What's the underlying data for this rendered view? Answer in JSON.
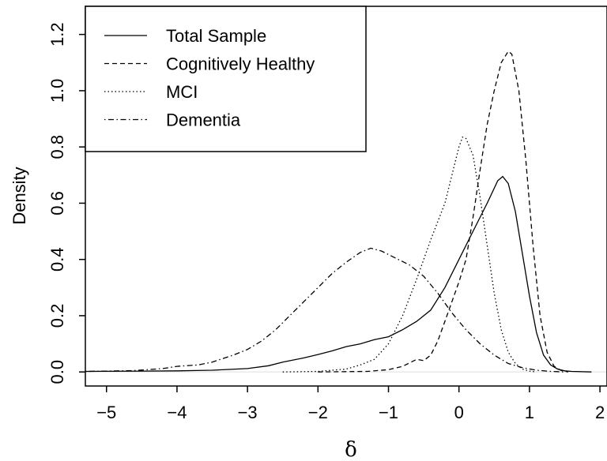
{
  "chart_data": {
    "type": "line",
    "title": "",
    "xlabel": "δ",
    "ylabel": "Density",
    "xlim": [
      -5.3,
      2.1
    ],
    "ylim": [
      -0.05,
      1.3
    ],
    "x_ticks": [
      -5,
      -4,
      -3,
      -2,
      -1,
      0,
      1,
      2
    ],
    "x_tick_labels": [
      "−5",
      "−4",
      "−3",
      "−2",
      "−1",
      "0",
      "1",
      "2"
    ],
    "y_ticks": [
      0.0,
      0.2,
      0.4,
      0.6,
      0.8,
      1.0,
      1.2
    ],
    "y_tick_labels": [
      "0.0",
      "0.2",
      "0.4",
      "0.6",
      "0.8",
      "1.0",
      "1.2"
    ],
    "grid": false,
    "legend_position": "top-left",
    "baseline": {
      "y": 0,
      "color": "#dddddd"
    },
    "series": [
      {
        "name": "Total Sample",
        "style": "solid",
        "color": "#000000",
        "points": [
          [
            -5.3,
            0.002
          ],
          [
            -4.5,
            0.003
          ],
          [
            -4.0,
            0.004
          ],
          [
            -3.5,
            0.006
          ],
          [
            -3.0,
            0.012
          ],
          [
            -2.7,
            0.022
          ],
          [
            -2.5,
            0.035
          ],
          [
            -2.2,
            0.05
          ],
          [
            -2.0,
            0.062
          ],
          [
            -1.8,
            0.075
          ],
          [
            -1.6,
            0.09
          ],
          [
            -1.4,
            0.1
          ],
          [
            -1.2,
            0.115
          ],
          [
            -1.0,
            0.125
          ],
          [
            -0.8,
            0.15
          ],
          [
            -0.6,
            0.18
          ],
          [
            -0.4,
            0.22
          ],
          [
            -0.2,
            0.3
          ],
          [
            0.0,
            0.4
          ],
          [
            0.2,
            0.5
          ],
          [
            0.4,
            0.6
          ],
          [
            0.55,
            0.68
          ],
          [
            0.62,
            0.695
          ],
          [
            0.7,
            0.67
          ],
          [
            0.8,
            0.57
          ],
          [
            0.9,
            0.42
          ],
          [
            1.0,
            0.27
          ],
          [
            1.1,
            0.14
          ],
          [
            1.2,
            0.06
          ],
          [
            1.3,
            0.025
          ],
          [
            1.4,
            0.01
          ],
          [
            1.5,
            0.004
          ],
          [
            1.6,
            0.002
          ],
          [
            1.88,
            0.0
          ]
        ]
      },
      {
        "name": "Cognitively Healthy",
        "style": "dashed",
        "color": "#000000",
        "points": [
          [
            -2.0,
            0.0
          ],
          [
            -1.6,
            0.001
          ],
          [
            -1.3,
            0.002
          ],
          [
            -1.0,
            0.008
          ],
          [
            -0.8,
            0.02
          ],
          [
            -0.6,
            0.045
          ],
          [
            -0.5,
            0.04
          ],
          [
            -0.4,
            0.06
          ],
          [
            -0.3,
            0.11
          ],
          [
            -0.2,
            0.18
          ],
          [
            -0.1,
            0.25
          ],
          [
            0.0,
            0.32
          ],
          [
            0.1,
            0.4
          ],
          [
            0.2,
            0.55
          ],
          [
            0.3,
            0.72
          ],
          [
            0.4,
            0.88
          ],
          [
            0.5,
            1.0
          ],
          [
            0.6,
            1.1
          ],
          [
            0.7,
            1.14
          ],
          [
            0.75,
            1.13
          ],
          [
            0.85,
            1.0
          ],
          [
            0.95,
            0.75
          ],
          [
            1.05,
            0.45
          ],
          [
            1.15,
            0.2
          ],
          [
            1.25,
            0.07
          ],
          [
            1.35,
            0.02
          ],
          [
            1.45,
            0.005
          ],
          [
            1.55,
            0.0
          ]
        ]
      },
      {
        "name": "MCI",
        "style": "dotted",
        "color": "#000000",
        "points": [
          [
            -2.5,
            0.0
          ],
          [
            -2.0,
            0.002
          ],
          [
            -1.6,
            0.01
          ],
          [
            -1.4,
            0.025
          ],
          [
            -1.2,
            0.045
          ],
          [
            -1.0,
            0.1
          ],
          [
            -0.8,
            0.2
          ],
          [
            -0.6,
            0.33
          ],
          [
            -0.4,
            0.47
          ],
          [
            -0.2,
            0.6
          ],
          [
            -0.1,
            0.7
          ],
          [
            0.0,
            0.8
          ],
          [
            0.05,
            0.835
          ],
          [
            0.1,
            0.83
          ],
          [
            0.2,
            0.77
          ],
          [
            0.3,
            0.62
          ],
          [
            0.4,
            0.45
          ],
          [
            0.5,
            0.28
          ],
          [
            0.6,
            0.15
          ],
          [
            0.7,
            0.07
          ],
          [
            0.8,
            0.03
          ],
          [
            0.9,
            0.01
          ],
          [
            1.0,
            0.003
          ],
          [
            1.1,
            0.0
          ]
        ]
      },
      {
        "name": "Dementia",
        "style": "dotdash",
        "color": "#000000",
        "points": [
          [
            -5.3,
            0.002
          ],
          [
            -5.0,
            0.003
          ],
          [
            -4.6,
            0.005
          ],
          [
            -4.2,
            0.012
          ],
          [
            -4.0,
            0.02
          ],
          [
            -3.7,
            0.025
          ],
          [
            -3.5,
            0.035
          ],
          [
            -3.2,
            0.06
          ],
          [
            -3.0,
            0.08
          ],
          [
            -2.8,
            0.11
          ],
          [
            -2.6,
            0.15
          ],
          [
            -2.4,
            0.2
          ],
          [
            -2.2,
            0.25
          ],
          [
            -2.0,
            0.3
          ],
          [
            -1.8,
            0.35
          ],
          [
            -1.6,
            0.39
          ],
          [
            -1.4,
            0.425
          ],
          [
            -1.25,
            0.44
          ],
          [
            -1.1,
            0.43
          ],
          [
            -0.9,
            0.405
          ],
          [
            -0.7,
            0.38
          ],
          [
            -0.5,
            0.34
          ],
          [
            -0.3,
            0.28
          ],
          [
            -0.1,
            0.21
          ],
          [
            0.1,
            0.15
          ],
          [
            0.3,
            0.1
          ],
          [
            0.5,
            0.06
          ],
          [
            0.7,
            0.03
          ],
          [
            0.9,
            0.015
          ],
          [
            1.1,
            0.006
          ],
          [
            1.3,
            0.002
          ],
          [
            1.5,
            0.0
          ]
        ]
      }
    ]
  }
}
